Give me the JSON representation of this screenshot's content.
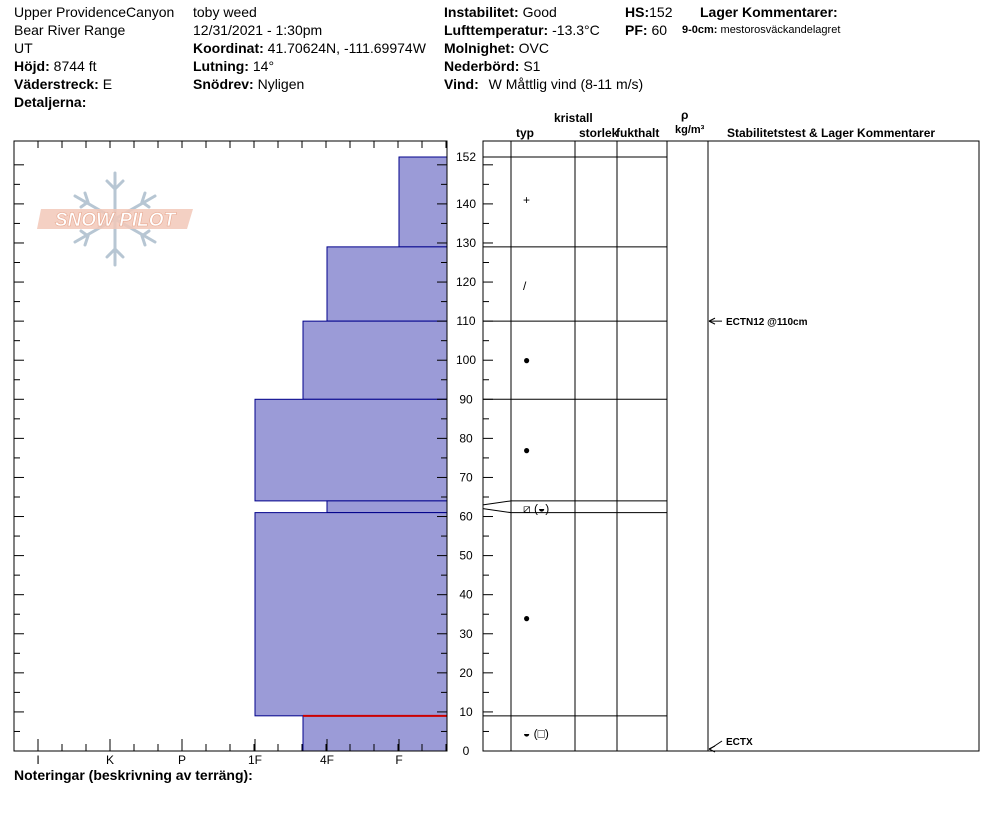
{
  "header": {
    "location": "Upper ProvidenceCanyon",
    "range": "Bear River Range",
    "state": "UT",
    "elevation_label": "Höjd:",
    "elevation_value": "8744 ft",
    "aspect_label": "Väderstreck:",
    "aspect_value": "E",
    "details_label": "Detaljerna:",
    "observer": "toby weed",
    "datetime": "12/31/2021 - 1:30pm",
    "coord_label": "Koordinat:",
    "coord_value": "41.70624N, -111.69974W",
    "slope_label": "Lutning:",
    "slope_value": "14°",
    "drift_label": "Snödrev:",
    "drift_value": "Nyligen",
    "instability_label": "Instabilitet:",
    "instability_value": "Good",
    "airtemp_label": "Lufttemperatur:",
    "airtemp_value": "-13.3°C",
    "sky_label": "Molnighet:",
    "sky_value": "OVC",
    "precip_label": "Nederbörd:",
    "precip_value": "S1",
    "wind_label": "Vind:",
    "wind_value": "W Måttlig vind (8-11 m/s)",
    "hs_label": "HS:",
    "hs_value": "152",
    "pf_label": "PF:",
    "pf_value": "60",
    "layer_comments_label": "Lager Kommentarer:",
    "layer_comment_range": "9-0cm:",
    "layer_comment_text": "mestorosväckandelagret"
  },
  "columns": {
    "crystal": "kristall",
    "type": "typ",
    "size": "storlek",
    "moisture": "fukthalt",
    "rho": "ρ",
    "density_unit": "kg/m³",
    "stability": "Stabilitetstest & Lager Kommentarer"
  },
  "footer": {
    "notes_label": "Noteringar (beskrivning av terräng):"
  },
  "logo_text": "SNOW PILOT",
  "colors": {
    "hardness_fill": "#9b9bd7",
    "hardness_stroke": "#00008b",
    "weak_layer": "#cc0000"
  },
  "chart_data": {
    "type": "bar",
    "orientation": "horizontal",
    "title": "",
    "xlabel": "",
    "ylabel": "",
    "x_categories": [
      "I",
      "K",
      "P",
      "1F",
      "4F",
      "F"
    ],
    "y_ticks": [
      0,
      10,
      20,
      30,
      40,
      50,
      60,
      70,
      80,
      90,
      100,
      110,
      120,
      130,
      140,
      152
    ],
    "ylim": [
      0,
      152
    ],
    "layers": [
      {
        "top": 152,
        "bottom": 129,
        "hardness": "F"
      },
      {
        "top": 129,
        "bottom": 110,
        "hardness": "4F"
      },
      {
        "top": 110,
        "bottom": 90,
        "hardness": "4F+"
      },
      {
        "top": 90,
        "bottom": 64,
        "hardness": "1F"
      },
      {
        "top": 64,
        "bottom": 61,
        "hardness": "4F"
      },
      {
        "top": 61,
        "bottom": 9,
        "hardness": "1F"
      },
      {
        "top": 9,
        "bottom": 0,
        "hardness": "4F+"
      }
    ],
    "weak_layer_depth": 9,
    "crystal_symbols": [
      {
        "depth": 141,
        "symbol": "+"
      },
      {
        "depth": 119,
        "symbol": "/"
      },
      {
        "depth": 100,
        "symbol": "●"
      },
      {
        "depth": 77,
        "symbol": "●"
      },
      {
        "depth": 62,
        "symbol": "⧄ (◒)"
      },
      {
        "depth": 34,
        "symbol": "●"
      },
      {
        "depth": 4.5,
        "symbol": "◒ (□)"
      }
    ],
    "stability_tests": [
      {
        "depth": 110,
        "label": "ECTN12 @110cm"
      },
      {
        "depth": 0,
        "label": "ECTX"
      }
    ]
  }
}
